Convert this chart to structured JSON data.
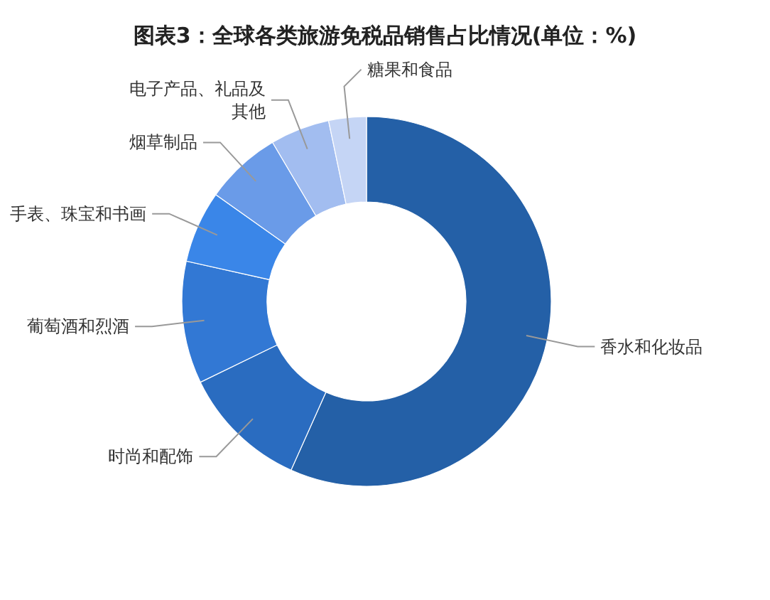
{
  "chart_data": {
    "type": "donut",
    "title": "图表3：全球各类旅游免税品销售占比情况(单位：%)",
    "categories": [
      "香水和化妆品",
      "时尚和配饰",
      "葡萄酒和烈酒",
      "手表、珠宝和书画",
      "烟草制品",
      "电子产品、礼品及其他",
      "糖果和食品"
    ],
    "values": [
      56.7,
      11.1,
      10.7,
      6.3,
      6.7,
      5.2,
      3.3
    ],
    "colors": [
      "#2460a7",
      "#2a6cc0",
      "#3278d4",
      "#3a86e8",
      "#6a9be8",
      "#a2bdf0",
      "#c5d5f5"
    ]
  }
}
